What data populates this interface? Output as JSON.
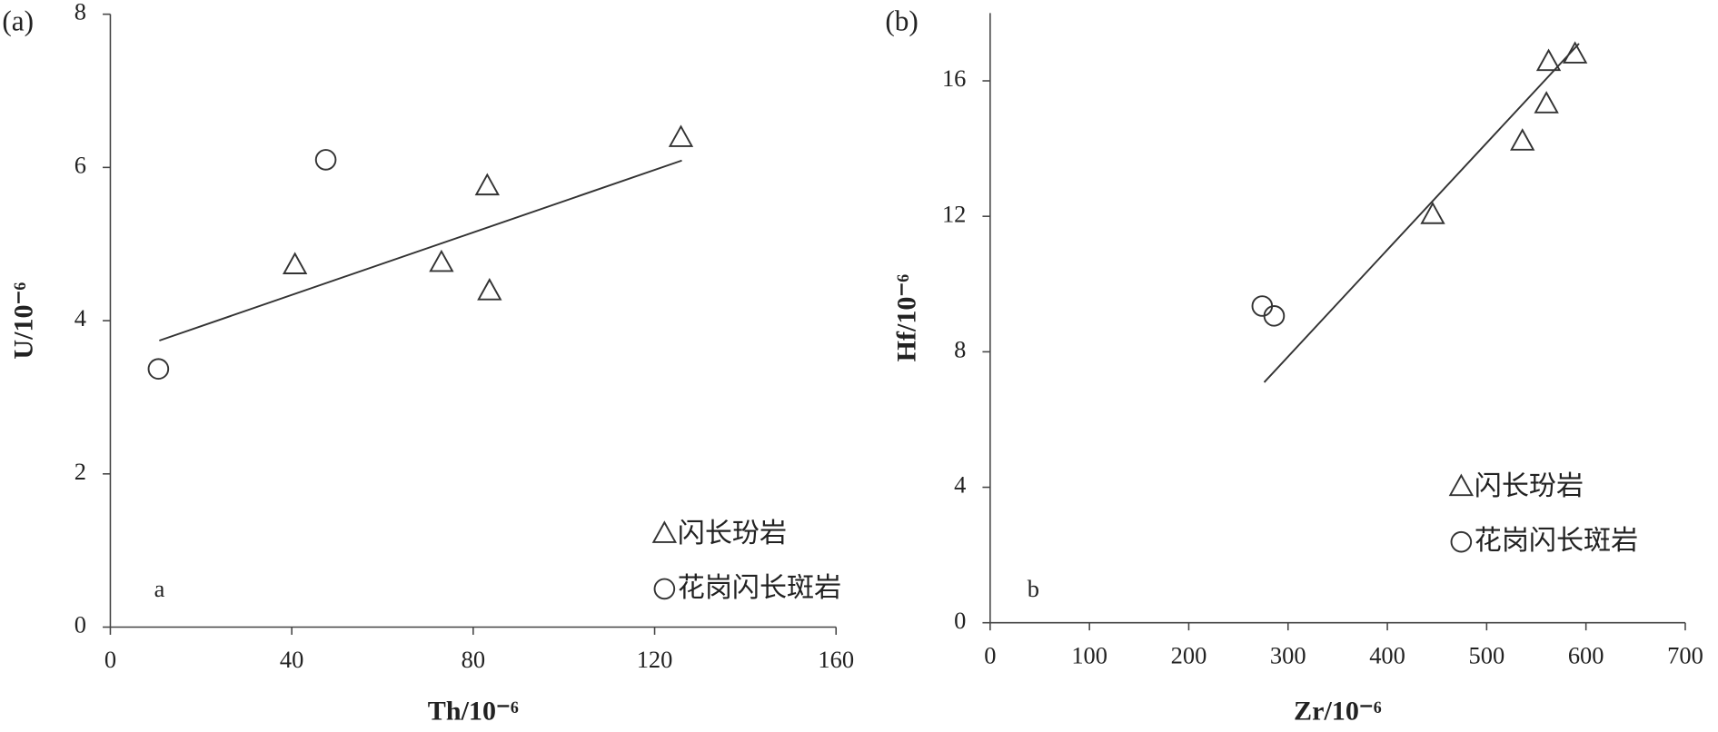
{
  "chart_data": [
    {
      "type": "scatter",
      "title": "(a)",
      "annotation": "a",
      "xlabel": "Th/10⁻⁶",
      "ylabel": "U/10⁻⁶",
      "xlim": [
        0,
        160
      ],
      "ylim": [
        0,
        8
      ],
      "xticks": [
        0,
        40,
        80,
        120,
        160
      ],
      "yticks": [
        0,
        2,
        4,
        6,
        8
      ],
      "legend": "lower right",
      "color": "#333333",
      "series": [
        {
          "name": "闪长玢岩",
          "marker": "triangle",
          "x": [
            40.7,
            73.0,
            83.1,
            83.6,
            125.8
          ],
          "values": [
            4.72,
            4.75,
            5.75,
            4.38,
            6.38
          ]
        },
        {
          "name": "花岗闪长斑岩",
          "marker": "circle",
          "x": [
            10.6,
            47.5
          ],
          "values": [
            3.37,
            6.1
          ]
        }
      ],
      "trendline": {
        "x": [
          10.8,
          126.0
        ],
        "y": [
          3.74,
          6.09
        ]
      }
    },
    {
      "type": "scatter",
      "title": "(b)",
      "annotation": "b",
      "xlabel": "Zr/10⁻⁶",
      "ylabel": "Hf/10⁻⁶",
      "xlim": [
        0,
        700
      ],
      "ylim": [
        0,
        18
      ],
      "xticks": [
        0,
        100,
        200,
        300,
        400,
        500,
        600,
        700
      ],
      "yticks": [
        0,
        4,
        8,
        12,
        16
      ],
      "legend": "lower right",
      "color": "#333333",
      "series": [
        {
          "name": "闪长玢岩",
          "marker": "triangle",
          "x": [
            445.7,
            536,
            560.2,
            562.4,
            589
          ],
          "values": [
            12.03,
            14.2,
            15.3,
            16.55,
            16.77
          ]
        },
        {
          "name": "花岗闪长斑岩",
          "marker": "circle",
          "x": [
            274,
            286
          ],
          "values": [
            9.35,
            9.06
          ]
        }
      ],
      "trendline": {
        "x": [
          276,
          593
        ],
        "y": [
          7.1,
          17.1
        ]
      }
    }
  ]
}
